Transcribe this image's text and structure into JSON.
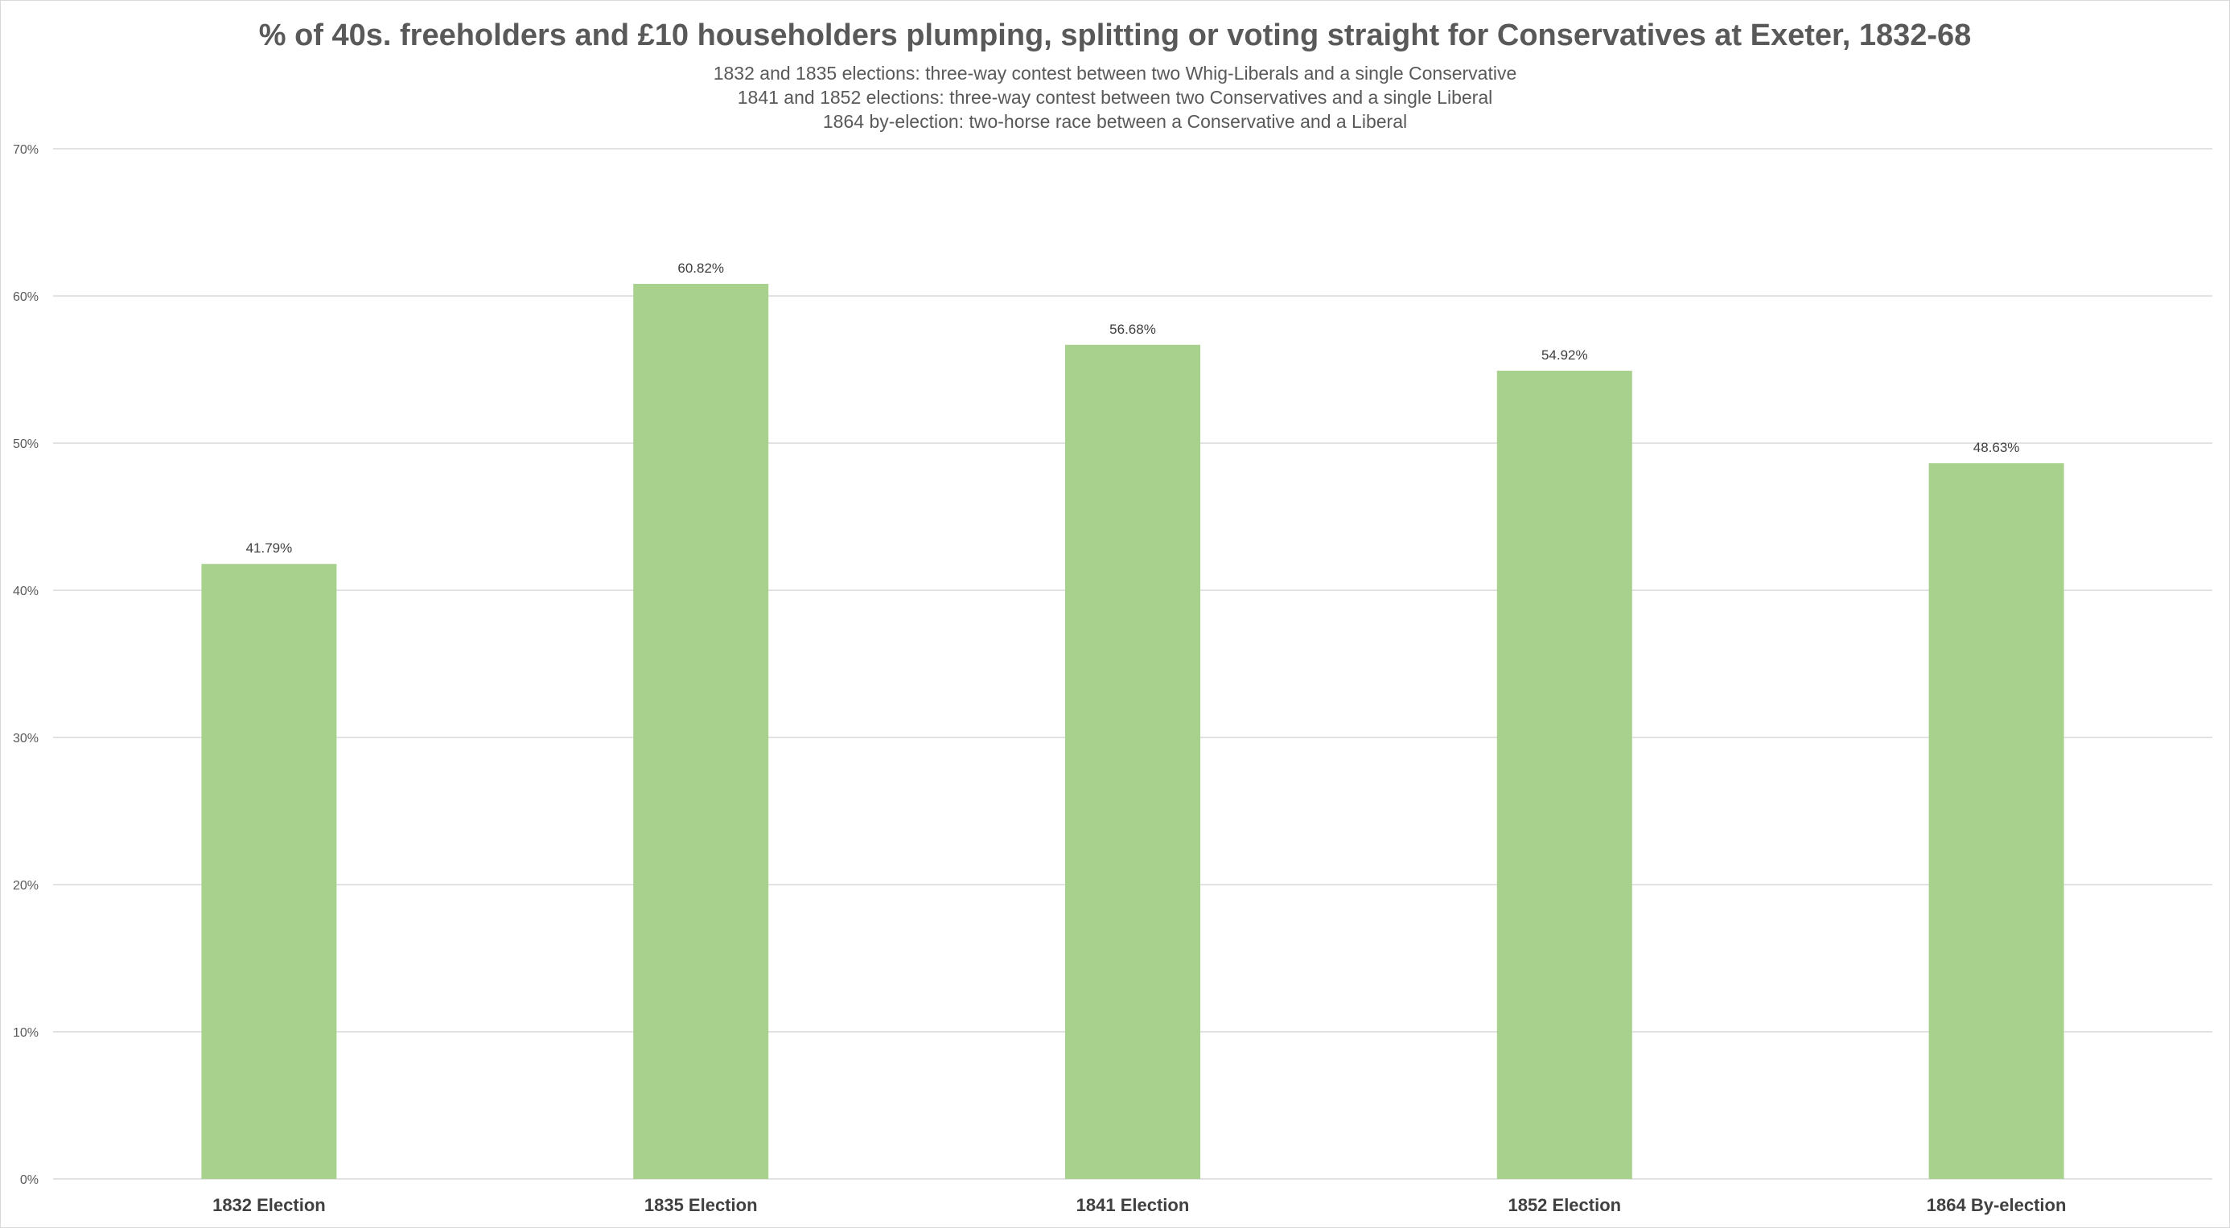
{
  "chart_data": {
    "type": "bar",
    "title": "% of 40s. freeholders and £10 householders plumping, splitting or voting straight for Conservatives at Exeter, 1832-68",
    "subtitles": [
      "1832 and 1835 elections: three-way contest between two Whig-Liberals and a single Conservative",
      "1841 and 1852 elections: three-way contest between two Conservatives and a single Liberal",
      "1864 by-election: two-horse race between a Conservative and a Liberal"
    ],
    "categories": [
      "1832 Election",
      "1835 Election",
      "1841 Election",
      "1852 Election",
      "1864 By-election"
    ],
    "values": [
      41.79,
      60.82,
      56.68,
      54.92,
      48.63
    ],
    "data_labels": [
      "41.79%",
      "60.82%",
      "56.68%",
      "54.92%",
      "48.63%"
    ],
    "yticks": [
      0,
      10,
      20,
      30,
      40,
      50,
      60,
      70
    ],
    "ytick_labels": [
      "0%",
      "10%",
      "20%",
      "30%",
      "40%",
      "50%",
      "60%",
      "70%"
    ],
    "ylim": [
      0,
      70
    ],
    "xlabel": "",
    "ylabel": "",
    "grid": true,
    "legend": "none",
    "bar_color": "#a9d18e",
    "grid_color": "#d9d9d9",
    "text_color": "#595959"
  }
}
